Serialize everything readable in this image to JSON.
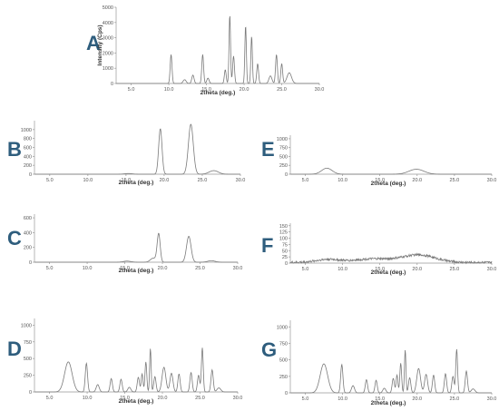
{
  "theme": {
    "letter_color": "#2e5d7d",
    "trace_color": "#7a7a7a",
    "axis_color": "#999999"
  },
  "chart_data": [
    {
      "id": "A",
      "type": "line",
      "letter": "A",
      "xlabel": "2theta (deg.)",
      "ylabel": "Intensity (Cps)",
      "xlim": [
        3,
        30
      ],
      "ylim": [
        0,
        5000
      ],
      "xticks": [
        "5.0",
        "10.0",
        "15.0",
        "20.0",
        "25.0",
        "30.0"
      ],
      "yticks": [
        "0",
        "1000",
        "2000",
        "3000",
        "4000",
        "5000"
      ],
      "peaks": [
        [
          10.3,
          1900,
          0.12
        ],
        [
          12.1,
          250,
          0.2
        ],
        [
          13.2,
          550,
          0.15
        ],
        [
          14.5,
          1900,
          0.12
        ],
        [
          15.2,
          350,
          0.15
        ],
        [
          17.5,
          900,
          0.12
        ],
        [
          18.1,
          4500,
          0.1
        ],
        [
          18.6,
          1800,
          0.12
        ],
        [
          20.2,
          3800,
          0.1
        ],
        [
          21.0,
          3100,
          0.1
        ],
        [
          21.8,
          1300,
          0.12
        ],
        [
          23.5,
          500,
          0.2
        ],
        [
          24.3,
          1900,
          0.12
        ],
        [
          25.0,
          1300,
          0.12
        ],
        [
          26.0,
          700,
          0.3
        ]
      ]
    },
    {
      "id": "B",
      "type": "line",
      "letter": "B",
      "xlabel": "2theta (deg.)",
      "ylabel": "",
      "xlim": [
        3,
        30
      ],
      "ylim": [
        0,
        1200
      ],
      "xticks": [
        "5.0",
        "10.0",
        "15.0",
        "20.0",
        "25.0",
        "30.0"
      ],
      "yticks": [
        "0",
        "200",
        "400",
        "600",
        "800",
        "1000"
      ],
      "peaks": [
        [
          15.3,
          15,
          0.5
        ],
        [
          19.5,
          1020,
          0.22
        ],
        [
          23.5,
          1120,
          0.32
        ],
        [
          26.5,
          80,
          0.6
        ]
      ]
    },
    {
      "id": "C",
      "type": "line",
      "letter": "C",
      "xlabel": "2theta (deg.)",
      "ylabel": "",
      "xlim": [
        3,
        30
      ],
      "ylim": [
        0,
        650
      ],
      "xticks": [
        "5.0",
        "10.0",
        "15.0",
        "20.0",
        "25.0",
        "30.0"
      ],
      "yticks": [
        "0",
        "200",
        "400",
        "600"
      ],
      "peaks": [
        [
          15.3,
          15,
          0.5
        ],
        [
          18.8,
          55,
          0.4
        ],
        [
          19.5,
          380,
          0.2
        ],
        [
          23.5,
          350,
          0.3
        ],
        [
          26.5,
          20,
          0.5
        ]
      ]
    },
    {
      "id": "D",
      "type": "line",
      "letter": "D",
      "xlabel": "2theta (deg.)",
      "ylabel": "",
      "xlim": [
        3,
        30
      ],
      "ylim": [
        0,
        1100
      ],
      "xticks": [
        "5.0",
        "10.0",
        "15.0",
        "20.0",
        "25.0",
        "30.0"
      ],
      "yticks": [
        "0",
        "250",
        "500",
        "750",
        "1000"
      ],
      "peaks": [
        [
          7.5,
          450,
          0.5
        ],
        [
          9.9,
          430,
          0.15
        ],
        [
          11.4,
          110,
          0.2
        ],
        [
          13.2,
          200,
          0.15
        ],
        [
          14.5,
          190,
          0.15
        ],
        [
          15.6,
          70,
          0.2
        ],
        [
          16.8,
          220,
          0.15
        ],
        [
          17.3,
          270,
          0.12
        ],
        [
          17.8,
          450,
          0.12
        ],
        [
          18.4,
          650,
          0.1
        ],
        [
          19.0,
          230,
          0.15
        ],
        [
          20.2,
          370,
          0.25
        ],
        [
          21.2,
          280,
          0.2
        ],
        [
          22.2,
          270,
          0.15
        ],
        [
          23.8,
          290,
          0.15
        ],
        [
          24.8,
          250,
          0.15
        ],
        [
          25.3,
          660,
          0.12
        ],
        [
          26.6,
          330,
          0.15
        ],
        [
          27.5,
          60,
          0.25
        ]
      ]
    },
    {
      "id": "E",
      "type": "line",
      "letter": "E",
      "xlabel": "2theta (deg.)",
      "ylabel": "",
      "xlim": [
        3,
        30
      ],
      "ylim": [
        0,
        1100
      ],
      "xticks": [
        "5.0",
        "10.0",
        "15.0",
        "20.0",
        "25.0",
        "30.0"
      ],
      "yticks": [
        "0",
        "250",
        "500",
        "750",
        "1000"
      ],
      "peaks": [
        [
          7.9,
          170,
          0.7
        ],
        [
          19.9,
          140,
          1.0
        ]
      ]
    },
    {
      "id": "F",
      "type": "line",
      "letter": "F",
      "xlabel": "2theta (deg.)",
      "ylabel": "",
      "xlim": [
        3,
        30
      ],
      "ylim": [
        0,
        160
      ],
      "xticks": [
        "5.0",
        "10.0",
        "15.0",
        "20.0",
        "25.0",
        "30.0"
      ],
      "yticks": [
        "0",
        "25",
        "50",
        "75",
        "100",
        "125",
        "150"
      ],
      "noise": 9,
      "peaks": [
        [
          8.0,
          12,
          1.5
        ],
        [
          14.0,
          14,
          2.5
        ],
        [
          20.2,
          30,
          2.2
        ]
      ]
    },
    {
      "id": "G",
      "type": "line",
      "letter": "G",
      "xlabel": "2theta (deg.)",
      "ylabel": "",
      "xlim": [
        3,
        30
      ],
      "ylim": [
        0,
        1100
      ],
      "xticks": [
        "5.0",
        "10.0",
        "15.0",
        "20.0",
        "25.0",
        "30.0"
      ],
      "yticks": [
        "0",
        "250",
        "500",
        "750",
        "1000"
      ],
      "peaks": [
        [
          7.5,
          440,
          0.5
        ],
        [
          9.9,
          430,
          0.15
        ],
        [
          11.4,
          110,
          0.2
        ],
        [
          13.2,
          200,
          0.15
        ],
        [
          14.5,
          190,
          0.15
        ],
        [
          15.6,
          70,
          0.2
        ],
        [
          16.8,
          220,
          0.15
        ],
        [
          17.3,
          270,
          0.12
        ],
        [
          17.8,
          450,
          0.12
        ],
        [
          18.4,
          650,
          0.1
        ],
        [
          19.0,
          230,
          0.15
        ],
        [
          20.2,
          370,
          0.25
        ],
        [
          21.2,
          280,
          0.2
        ],
        [
          22.2,
          270,
          0.15
        ],
        [
          23.8,
          290,
          0.15
        ],
        [
          24.8,
          250,
          0.15
        ],
        [
          25.3,
          660,
          0.12
        ],
        [
          26.6,
          330,
          0.15
        ],
        [
          27.5,
          60,
          0.25
        ]
      ]
    }
  ]
}
